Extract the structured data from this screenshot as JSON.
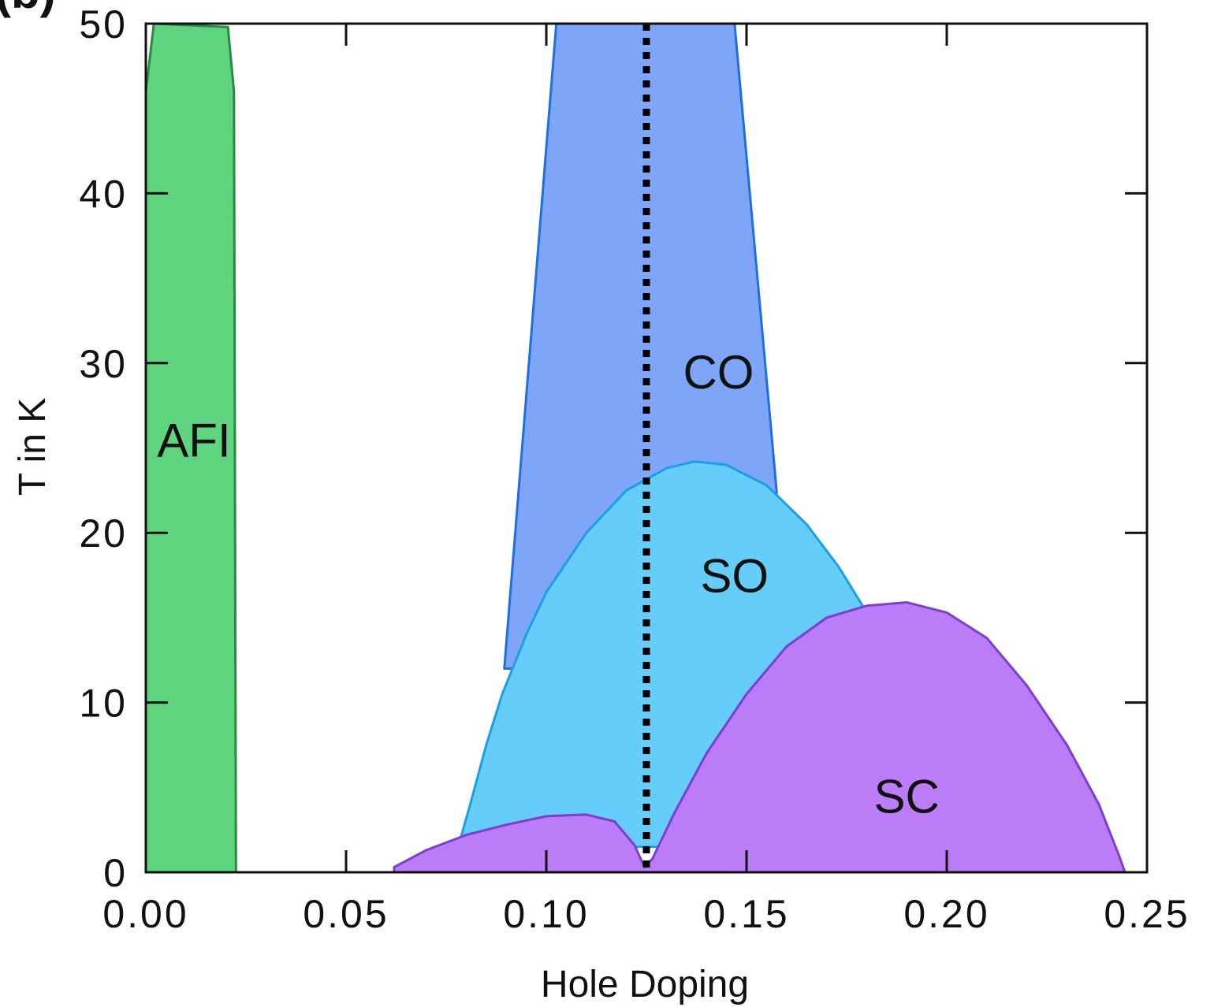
{
  "chart_data": {
    "type": "area",
    "panel_label": "(b)",
    "title": "",
    "xlabel": "Hole Doping",
    "ylabel": "T in K",
    "xlim": [
      0.0,
      0.25
    ],
    "ylim": [
      0,
      50
    ],
    "xticks": [
      "0.00",
      "0.05",
      "0.10",
      "0.15",
      "0.20",
      "0.25"
    ],
    "xtick_values": [
      0.0,
      0.05,
      0.1,
      0.15,
      0.2,
      0.25
    ],
    "yticks": [
      "0",
      "10",
      "20",
      "30",
      "40",
      "50"
    ],
    "ytick_values": [
      0,
      10,
      20,
      30,
      40,
      50
    ],
    "grid": false,
    "legend": "none",
    "reference_line": {
      "x": 0.125,
      "style": "dotted",
      "color": "#000000"
    },
    "regions": [
      {
        "name": "CO",
        "label": "CO",
        "label_at": [
          0.143,
          28.5
        ],
        "fill": "#7ea5f8",
        "stroke": "#1f6fe0",
        "points": [
          [
            0.0895,
            12
          ],
          [
            0.1025,
            50
          ],
          [
            0.147,
            50
          ],
          [
            0.1575,
            22.5
          ],
          [
            0.1575,
            12
          ]
        ]
      },
      {
        "name": "SO",
        "label": "SO",
        "label_at": [
          0.147,
          16.5
        ],
        "fill": "#66cdfa",
        "stroke": "#1aa0e6",
        "points": [
          [
            0.078,
            1.5
          ],
          [
            0.081,
            4
          ],
          [
            0.085,
            7.5
          ],
          [
            0.089,
            10.5
          ],
          [
            0.095,
            14
          ],
          [
            0.1,
            16.5
          ],
          [
            0.11,
            20
          ],
          [
            0.12,
            22.5
          ],
          [
            0.13,
            23.8
          ],
          [
            0.137,
            24.2
          ],
          [
            0.145,
            24
          ],
          [
            0.155,
            22.8
          ],
          [
            0.165,
            20.5
          ],
          [
            0.173,
            18
          ],
          [
            0.1795,
            15.5
          ],
          [
            0.1795,
            1.5
          ]
        ]
      },
      {
        "name": "SC",
        "label": "SC",
        "label_at": [
          0.19,
          3.5
        ],
        "fill": "#bb7cf7",
        "stroke": "#7a3fd0",
        "points": [
          [
            0.062,
            0.3
          ],
          [
            0.07,
            1.3
          ],
          [
            0.08,
            2.2
          ],
          [
            0.09,
            2.8
          ],
          [
            0.1,
            3.3
          ],
          [
            0.11,
            3.4
          ],
          [
            0.117,
            3.0
          ],
          [
            0.122,
            1.6
          ],
          [
            0.1245,
            0.3
          ],
          [
            0.1265,
            0.8
          ],
          [
            0.132,
            3.5
          ],
          [
            0.14,
            7
          ],
          [
            0.15,
            10.5
          ],
          [
            0.16,
            13.3
          ],
          [
            0.17,
            15.0
          ],
          [
            0.18,
            15.7
          ],
          [
            0.19,
            15.9
          ],
          [
            0.2,
            15.3
          ],
          [
            0.21,
            13.8
          ],
          [
            0.22,
            11.0
          ],
          [
            0.23,
            7.5
          ],
          [
            0.238,
            4.0
          ],
          [
            0.243,
            1.0
          ],
          [
            0.2445,
            0.0
          ],
          [
            0.062,
            0.0
          ]
        ]
      },
      {
        "name": "AFI",
        "label": "AFI",
        "label_at": [
          0.012,
          24.5
        ],
        "fill": "#5ed47f",
        "stroke": "#2a8a45",
        "points": [
          [
            0.0,
            0.0
          ],
          [
            0.0,
            46
          ],
          [
            0.002,
            50
          ],
          [
            0.0205,
            49.8
          ],
          [
            0.022,
            46
          ],
          [
            0.0225,
            0.0
          ]
        ]
      }
    ]
  }
}
